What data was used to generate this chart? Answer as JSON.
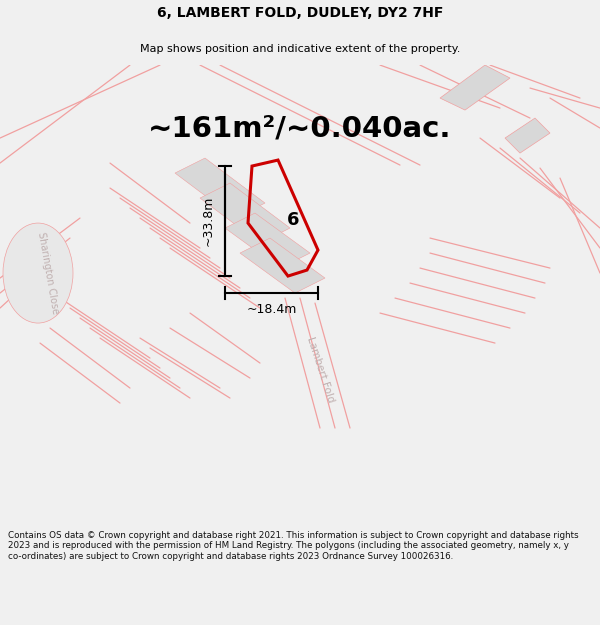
{
  "title": "6, LAMBERT FOLD, DUDLEY, DY2 7HF",
  "subtitle": "Map shows position and indicative extent of the property.",
  "area_text": "~161m²/~0.040ac.",
  "background_color": "#f0f0f0",
  "map_bg": "#ffffff",
  "footer_text": "Contains OS data © Crown copyright and database right 2021. This information is subject to Crown copyright and database rights 2023 and is reproduced with the permission of HM Land Registry. The polygons (including the associated geometry, namely x, y co-ordinates) are subject to Crown copyright and database rights 2023 Ordnance Survey 100026316.",
  "plot_color": "#cc0000",
  "road_color": "#f0a0a0",
  "road_color2": "#e8b0b0",
  "building_color": "#d8d8d8",
  "dim_line_color": "#000000",
  "road_label_color": "#c0b0b0",
  "label_color": "#000000",
  "dim_h": "~33.8m",
  "dim_w": "~18.4m",
  "plot_label": "6",
  "street_label_1": "Lambert Fold",
  "street_label_2": "Sharington Close",
  "figsize": [
    6.0,
    6.25
  ],
  "dpi": 100
}
